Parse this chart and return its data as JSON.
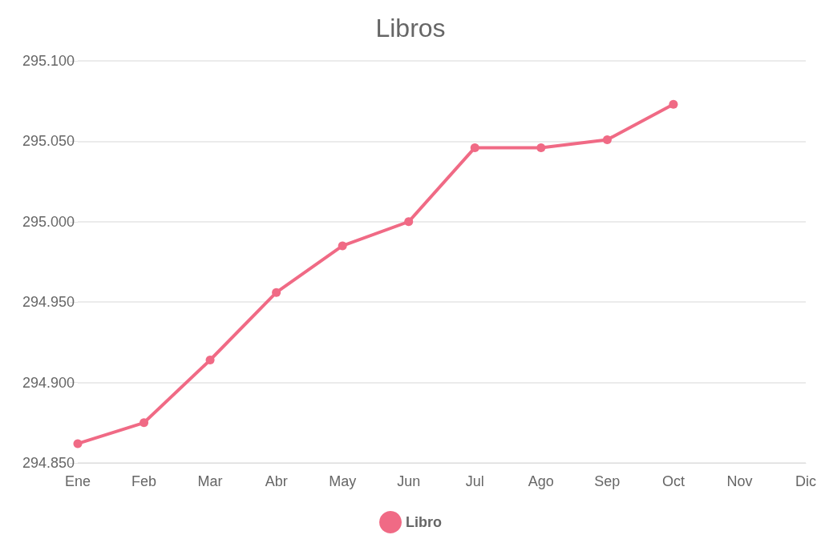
{
  "chart_data": {
    "type": "line",
    "title": "Libros",
    "categories": [
      "Ene",
      "Feb",
      "Mar",
      "Abr",
      "May",
      "Jun",
      "Jul",
      "Ago",
      "Sep",
      "Oct",
      "Nov",
      "Dic"
    ],
    "series": [
      {
        "name": "Libro",
        "color": "#f06a85",
        "values": [
          294862,
          294875,
          294914,
          294956,
          294985,
          295000,
          295046,
          295046,
          295051,
          295073,
          null,
          null
        ]
      }
    ],
    "ylim": [
      294850,
      295100
    ],
    "yticks": [
      {
        "value": 294850,
        "label": "294.850"
      },
      {
        "value": 294900,
        "label": "294.900"
      },
      {
        "value": 294950,
        "label": "294.950"
      },
      {
        "value": 295000,
        "label": "295.000"
      },
      {
        "value": 295050,
        "label": "295.050"
      },
      {
        "value": 295100,
        "label": "295.100"
      }
    ],
    "grid": "y",
    "legend": "bottom",
    "marker": "circle",
    "line_style": "solid"
  }
}
